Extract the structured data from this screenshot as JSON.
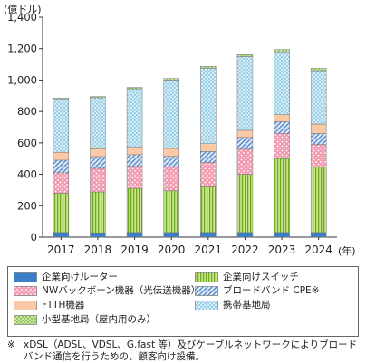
{
  "chart_data": {
    "type": "bar",
    "stacked": true,
    "y_unit_label": "(億ドル)",
    "x_unit_label": "(年)",
    "categories": [
      "2017",
      "2018",
      "2019",
      "2020",
      "2021",
      "2022",
      "2023",
      "2024"
    ],
    "ylim": [
      0,
      1400
    ],
    "yticks": [
      0,
      200,
      400,
      600,
      800,
      1000,
      1200,
      1400
    ],
    "ytick_labels": [
      "0",
      "200",
      "400",
      "600",
      "800",
      "1,000",
      "1,200",
      "1,400"
    ],
    "grid": false,
    "series": [
      {
        "name": "企業向けルーター",
        "color": "#3a7fc8",
        "pattern": "solid",
        "values": [
          30,
          28,
          30,
          30,
          30,
          30,
          30,
          30
        ]
      },
      {
        "name": "企業向けスイッチ",
        "color": "#9acd32",
        "pattern": "vertical-stripes",
        "values": [
          250,
          260,
          280,
          265,
          290,
          370,
          470,
          415
        ]
      },
      {
        "name": "NWバックボーン機器（光伝送機器）",
        "color": "#f4a0b0",
        "pattern": "dots",
        "values": [
          130,
          150,
          140,
          150,
          155,
          160,
          160,
          145
        ]
      },
      {
        "name": "ブロードバンド CPE※",
        "color": "#9ab8e0",
        "pattern": "diagonal-stripes",
        "values": [
          80,
          75,
          75,
          70,
          70,
          75,
          75,
          70
        ]
      },
      {
        "name": "FTTH機器",
        "color": "#fbc9a6",
        "pattern": "solid",
        "values": [
          50,
          50,
          50,
          50,
          50,
          45,
          45,
          60
        ]
      },
      {
        "name": "携帯基地局",
        "color": "#cde8f2",
        "pattern": "dots-blue",
        "values": [
          340,
          325,
          370,
          435,
          480,
          470,
          400,
          340
        ]
      },
      {
        "name": "小型基地局（屋内用のみ）",
        "color": "#c8e6a0",
        "pattern": "cross-hatch",
        "values": [
          5,
          7,
          8,
          10,
          12,
          12,
          15,
          15
        ]
      }
    ]
  },
  "legend": {
    "items": [
      {
        "label": "企業向けルーター",
        "pattern": "solid-blue"
      },
      {
        "label": "企業向けスイッチ",
        "pattern": "vertical-stripes"
      },
      {
        "label": "NWバックボーン機器（光伝送機器）",
        "pattern": "dots"
      },
      {
        "label": "ブロードバンド CPE※",
        "pattern": "diagonal-stripes"
      },
      {
        "label": "FTTH機器",
        "pattern": "solid-peach"
      },
      {
        "label": "携帯基地局",
        "pattern": "dots-blue"
      },
      {
        "label": "小型基地局（屋内用のみ）",
        "pattern": "cross-hatch"
      }
    ]
  },
  "note": {
    "mark": "※",
    "text": "xDSL（ADSL、VDSL、G.fast 等）及びケーブルネットワークによりブロードバンド通信を行うための、顧客向け設備。"
  }
}
